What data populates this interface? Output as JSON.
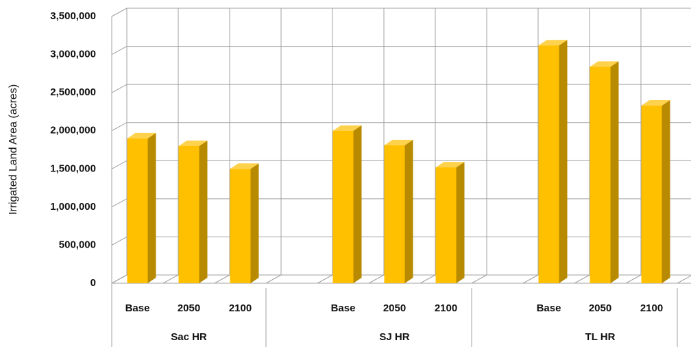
{
  "chart_data": {
    "type": "bar3d",
    "y_label": "Irrigated Land Area (acres)",
    "categories": [
      "Base",
      "2050",
      "2100",
      null,
      "Base",
      "2050",
      "2100",
      null,
      "Base",
      "2050",
      "2100",
      null
    ],
    "values": [
      1900000,
      1800000,
      1500000,
      null,
      2000000,
      1810000,
      1520000,
      null,
      3120000,
      2840000,
      2330000,
      null
    ],
    "groups": [
      "Sac HR",
      "SJ HR",
      "TL HR"
    ],
    "color": "#ffc000",
    "ylim": [
      0,
      3500000
    ],
    "yticks": [
      0,
      {
        "value": 500000,
        "label": "500,000"
      },
      {
        "value": 1000000,
        "label": "1,000,000"
      },
      {
        "value": 1500000,
        "label": "1,500,000"
      },
      {
        "value": 2000000,
        "label": "2,000,000"
      },
      {
        "value": 2500000,
        "label": "2,500,000"
      },
      {
        "value": 3000000,
        "label": "3,000,000"
      },
      {
        "value": 3500000,
        "label": "3,500,000"
      }
    ],
    "grid": true
  }
}
